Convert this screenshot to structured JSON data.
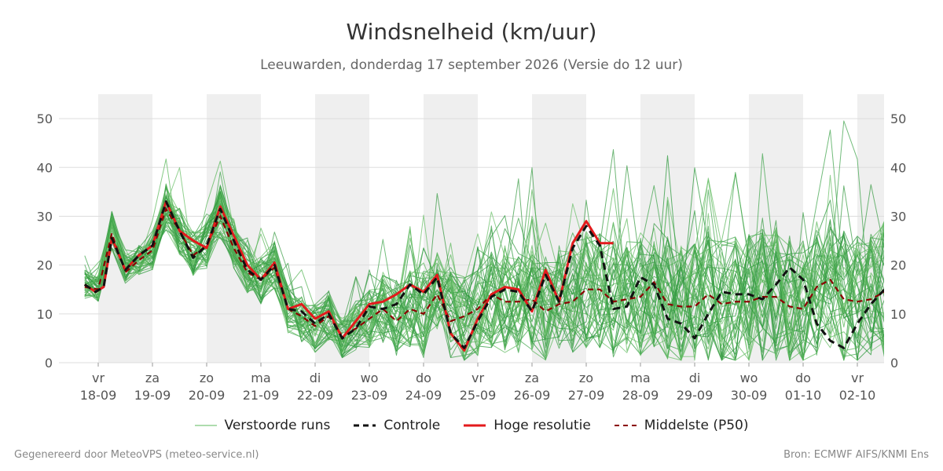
{
  "title": "Windsnelheid (km/uur)",
  "subtitle": "Leeuwarden, donderdag 17 september 2026 (Versie do 12 uur)",
  "footer": {
    "left": "Gegenereerd door MeteoVPS (meteo-service.nl)",
    "right": "Bron: ECMWF AIFS/KNMI Ens"
  },
  "legend": [
    {
      "key": "ensemble",
      "label": "Verstoorde runs",
      "color": "#4caf50",
      "style": "thin-solid"
    },
    {
      "key": "control",
      "label": "Controle",
      "color": "#111111",
      "style": "dashed"
    },
    {
      "key": "hires",
      "label": "Hoge resolutie",
      "color": "#e31a1c",
      "style": "solid"
    },
    {
      "key": "median",
      "label": "Middelste (P50)",
      "color": "#8b0000",
      "style": "dashed"
    }
  ],
  "chart_data": {
    "type": "line",
    "ylim": [
      0,
      55
    ],
    "yticks": [
      0,
      10,
      20,
      30,
      40,
      50
    ],
    "grid": true,
    "legend_position": "bottom",
    "x_range_days": [
      -0.1,
      14.5
    ],
    "day_labels": [
      {
        "day": "vr",
        "date": "18-09"
      },
      {
        "day": "za",
        "date": "19-09"
      },
      {
        "day": "zo",
        "date": "20-09"
      },
      {
        "day": "ma",
        "date": "21-09"
      },
      {
        "day": "di",
        "date": "22-09"
      },
      {
        "day": "wo",
        "date": "23-09"
      },
      {
        "day": "do",
        "date": "24-09"
      },
      {
        "day": "vr",
        "date": "25-09"
      },
      {
        "day": "za",
        "date": "26-09"
      },
      {
        "day": "zo",
        "date": "27-09"
      },
      {
        "day": "ma",
        "date": "28-09"
      },
      {
        "day": "di",
        "date": "29-09"
      },
      {
        "day": "wo",
        "date": "30-09"
      },
      {
        "day": "do",
        "date": "01-10"
      },
      {
        "day": "vr",
        "date": "02-10"
      }
    ],
    "weekend_shading": [
      [
        0,
        1
      ],
      [
        2,
        3
      ],
      [
        4,
        5
      ],
      [
        6,
        7
      ],
      [
        8,
        9
      ],
      [
        10,
        11
      ],
      [
        12,
        13
      ],
      [
        14,
        15
      ]
    ],
    "hires_series": {
      "x": [
        -0.25,
        -0.05,
        0.1,
        0.25,
        0.5,
        0.75,
        1.0,
        1.25,
        1.5,
        1.75,
        2.0,
        2.25,
        2.5,
        2.75,
        3.0,
        3.25,
        3.5,
        3.75,
        4.0,
        4.25,
        4.5,
        4.75,
        5.0,
        5.25,
        5.5,
        5.75,
        6.0,
        6.25,
        6.5,
        6.75,
        7.0,
        7.25,
        7.5,
        7.75,
        8.0,
        8.25,
        8.5,
        8.75,
        9.0,
        9.25,
        9.5
      ],
      "values": [
        16,
        14.5,
        15.5,
        25.5,
        19,
        22,
        24,
        33,
        27,
        25,
        23.5,
        32,
        26,
        20,
        17,
        20.5,
        11,
        12,
        9,
        10.5,
        5,
        8.5,
        12,
        12.5,
        14,
        16,
        14.5,
        18,
        6,
        2.5,
        9,
        14,
        15.5,
        15,
        10.5,
        19,
        12.5,
        24.5,
        29,
        24.5,
        24.5
      ]
    },
    "control_series": {
      "x": [
        -0.25,
        -0.05,
        0.1,
        0.25,
        0.5,
        0.75,
        1.0,
        1.25,
        1.5,
        1.75,
        2.0,
        2.25,
        2.5,
        2.75,
        3.0,
        3.25,
        3.5,
        3.75,
        4.0,
        4.25,
        4.5,
        4.75,
        5.0,
        5.25,
        5.5,
        5.75,
        6.0,
        6.25,
        6.5,
        6.75,
        7.0,
        7.25,
        7.5,
        7.75,
        8.0,
        8.25,
        8.5,
        8.75,
        9.0,
        9.25,
        9.5,
        9.75,
        10.0,
        10.25,
        10.5,
        10.75,
        11.0,
        11.25,
        11.5,
        11.75,
        12.0,
        12.25,
        12.5,
        12.75,
        13.0,
        13.25,
        13.5,
        13.75,
        14.0,
        14.25,
        14.5
      ],
      "values": [
        16,
        14.5,
        15.5,
        25.5,
        19,
        22,
        24,
        33,
        27,
        21.5,
        24,
        31.5,
        25,
        19,
        17,
        20,
        11,
        10.5,
        8,
        10,
        5,
        7,
        11.5,
        11,
        12,
        16,
        14,
        17.5,
        6,
        3,
        8.5,
        13.5,
        15,
        14.5,
        10.5,
        18,
        12.5,
        23.5,
        28,
        24,
        11,
        11.5,
        17.5,
        16,
        9,
        8,
        5,
        10,
        14.5,
        14,
        14,
        13,
        16,
        19.5,
        17,
        8,
        4.5,
        3,
        8,
        12,
        15
      ]
    },
    "median_series": {
      "x": [
        -0.25,
        0.0,
        0.25,
        0.5,
        0.75,
        1.0,
        1.25,
        1.5,
        1.75,
        2.0,
        2.25,
        2.5,
        2.75,
        3.0,
        3.25,
        3.5,
        3.75,
        4.0,
        4.25,
        4.5,
        4.75,
        5.0,
        5.25,
        5.5,
        5.75,
        6.0,
        6.25,
        6.5,
        6.75,
        7.0,
        7.25,
        7.5,
        7.75,
        8.0,
        8.25,
        8.5,
        8.75,
        9.0,
        9.25,
        9.5,
        9.75,
        10.0,
        10.25,
        10.5,
        10.75,
        11.0,
        11.25,
        11.5,
        11.75,
        12.0,
        12.25,
        12.5,
        12.75,
        13.0,
        13.25,
        13.5,
        13.75,
        14.0,
        14.25,
        14.5
      ],
      "values": [
        15.5,
        15,
        26.5,
        18.5,
        21,
        23,
        31.5,
        27,
        22,
        24,
        30,
        23.5,
        18.5,
        17,
        19.5,
        11,
        9.5,
        7.5,
        9.5,
        5.5,
        7,
        9,
        11,
        8.5,
        11,
        10,
        14,
        8.5,
        9.5,
        11,
        14,
        12.5,
        12.5,
        13,
        10.5,
        12,
        12.5,
        15,
        15,
        12.5,
        13,
        13.5,
        16.5,
        12,
        11.5,
        11.5,
        14,
        12,
        12.5,
        12.5,
        13.5,
        13.5,
        11.5,
        11,
        15.5,
        17,
        13,
        12.5,
        13,
        14.5
      ]
    },
    "ensemble": {
      "member_count": 50,
      "mean_x": [
        -0.25,
        0.0,
        0.25,
        0.5,
        0.75,
        1.0,
        1.25,
        1.5,
        1.75,
        2.0,
        2.25,
        2.5,
        2.75,
        3.0,
        3.25,
        3.5,
        3.75,
        4.0,
        4.25,
        4.5,
        4.75,
        5.0,
        5.25,
        5.5,
        5.75,
        6.0,
        6.25,
        6.5,
        6.75,
        7.0,
        7.25,
        7.5,
        7.75,
        8.0,
        8.25,
        8.5,
        8.75,
        9.0,
        9.25,
        9.5,
        9.75,
        10.0,
        10.25,
        10.5,
        10.75,
        11.0,
        11.25,
        11.5,
        11.75,
        12.0,
        12.25,
        12.5,
        12.75,
        13.0,
        13.25,
        13.5,
        13.75,
        14.0,
        14.25,
        14.5
      ],
      "mean_values": [
        16,
        15,
        27,
        19,
        21,
        23,
        32,
        27,
        22,
        24,
        31,
        24,
        19,
        17,
        20,
        11,
        9,
        7,
        9,
        5,
        7,
        9,
        11,
        9,
        11,
        10,
        14,
        10,
        9,
        10,
        13,
        12,
        12,
        13,
        11,
        13,
        13,
        15,
        15,
        13,
        13,
        14,
        16,
        13,
        11,
        12,
        14,
        12,
        12,
        13,
        14,
        14,
        12,
        12,
        15,
        17,
        13,
        12,
        13,
        15
      ],
      "spread_values": [
        3,
        3,
        4,
        3,
        3,
        4,
        5,
        5,
        5,
        5,
        6,
        5,
        5,
        5,
        5,
        5,
        5,
        5,
        5,
        4,
        5,
        6,
        7,
        8,
        8,
        9,
        9,
        9,
        9,
        9,
        10,
        10,
        10,
        11,
        11,
        11,
        11,
        12,
        12,
        12,
        12,
        13,
        13,
        13,
        13,
        13,
        14,
        14,
        14,
        14,
        14,
        14,
        14,
        14,
        14,
        14,
        14,
        14,
        14,
        14
      ]
    }
  }
}
